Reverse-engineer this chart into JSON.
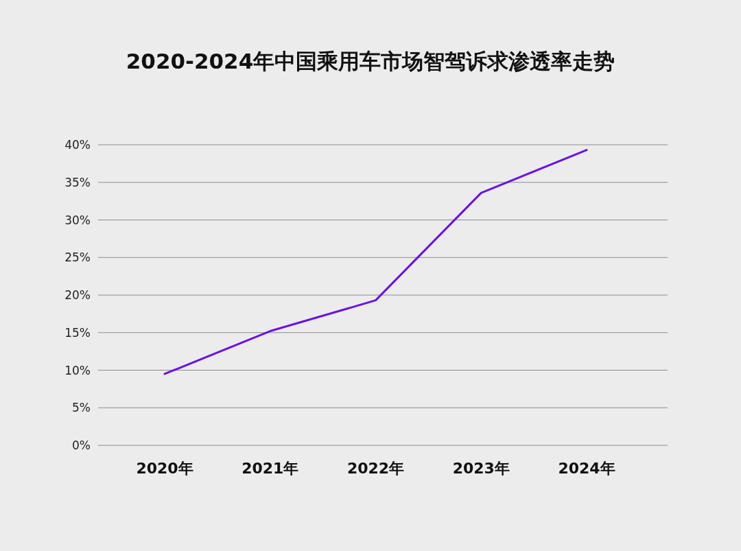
{
  "chart_data": {
    "type": "line",
    "title": "2020-2024年中国乘用车市场智驾诉求渗透率走势",
    "categories": [
      "2020年",
      "2021年",
      "2022年",
      "2023年",
      "2024年"
    ],
    "series": [
      {
        "color": "#6a12e6",
        "values": [
          9.5,
          15.2,
          19.3,
          33.6,
          39.3
        ]
      }
    ],
    "ylim": [
      0,
      40
    ],
    "yticks": [
      {
        "value": 0,
        "label": "0%"
      },
      {
        "value": 5,
        "label": "5%"
      },
      {
        "value": 10,
        "label": "10%"
      },
      {
        "value": 15,
        "label": "15%"
      },
      {
        "value": 20,
        "label": "20%"
      },
      {
        "value": 25,
        "label": "25%"
      },
      {
        "value": 30,
        "label": "30%"
      },
      {
        "value": 35,
        "label": "35%"
      },
      {
        "value": 40,
        "label": "40%"
      }
    ],
    "grid": "y"
  }
}
